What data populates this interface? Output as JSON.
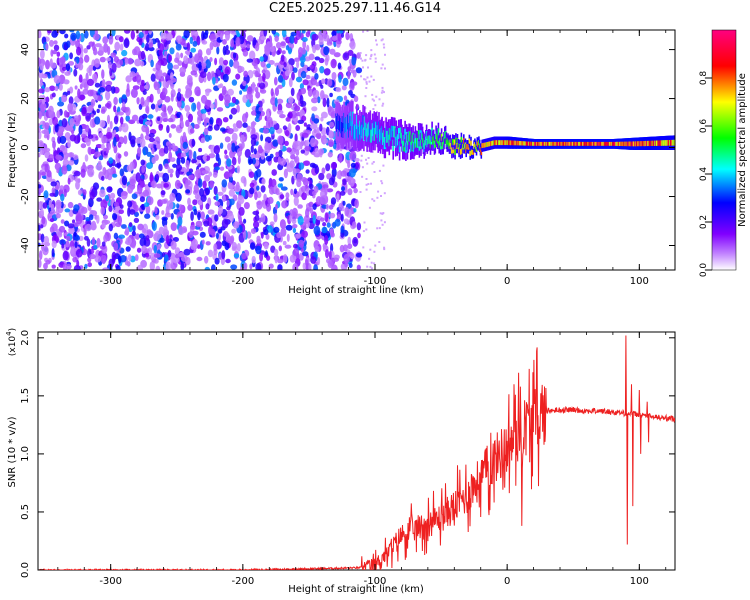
{
  "title": "C2E5.2025.297.11.46.G14",
  "chart_data": [
    {
      "type": "heatmap",
      "title": "C2E5.2025.297.11.46.G14",
      "xlabel": "Height of straight line (km)",
      "ylabel": "Frequency (Hz)",
      "xlim": [
        -355,
        127
      ],
      "ylim": [
        -50,
        48
      ],
      "xticks": [
        -300,
        -200,
        -100,
        0,
        100
      ],
      "yticks": [
        -40,
        -20,
        0,
        20,
        40
      ],
      "colorbar": {
        "label": "Normalized spectral amplitude",
        "range": [
          0.0,
          1.0
        ],
        "ticks": [
          0.0,
          0.2,
          0.4,
          0.6,
          0.8
        ],
        "colors": [
          "#ffffff",
          "#a000ff",
          "#0000ff",
          "#00ffff",
          "#00ff00",
          "#ffff00",
          "#ff0000",
          "#ff0080"
        ]
      },
      "noise_region": {
        "x": [
          -355,
          -112
        ],
        "y": [
          -50,
          48
        ],
        "amplitude": 0.25
      },
      "signal_track": [
        {
          "x": -130,
          "f": 10,
          "amp": 0.35,
          "width": 8
        },
        {
          "x": -110,
          "f": 8,
          "amp": 0.45,
          "width": 7
        },
        {
          "x": -90,
          "f": 4,
          "amp": 0.5,
          "width": 6
        },
        {
          "x": -70,
          "f": 2,
          "amp": 0.55,
          "width": 5
        },
        {
          "x": -55,
          "f": 4,
          "amp": 0.6,
          "width": 4
        },
        {
          "x": -40,
          "f": 1,
          "amp": 0.75,
          "width": 3
        },
        {
          "x": -25,
          "f": 0,
          "amp": 0.85,
          "width": 2.5
        },
        {
          "x": -10,
          "f": 2,
          "amp": 0.85,
          "width": 2.5
        },
        {
          "x": 0,
          "f": 2,
          "amp": 0.9,
          "width": 2.5
        },
        {
          "x": 20,
          "f": 1.5,
          "amp": 0.95,
          "width": 2
        },
        {
          "x": 50,
          "f": 1.5,
          "amp": 0.95,
          "width": 2
        },
        {
          "x": 80,
          "f": 1.5,
          "amp": 0.95,
          "width": 2
        },
        {
          "x": 95,
          "f": 1.5,
          "amp": 0.95,
          "width": 2.5
        },
        {
          "x": 127,
          "f": 2,
          "amp": 0.9,
          "width": 3
        }
      ]
    },
    {
      "type": "line",
      "xlabel": "Height of straight line (km)",
      "ylabel": "SNR (10 * v/v)",
      "yscale_label": "(x10",
      "yscale_exp": "4",
      "xlim": [
        -355,
        127
      ],
      "ylim": [
        0,
        2.05
      ],
      "xticks": [
        -300,
        -200,
        -100,
        0,
        100
      ],
      "yticks": [
        0.0,
        0.5,
        1.0,
        1.5,
        2.0
      ],
      "ytick_labels": [
        "0.0",
        "0.5",
        "1.0",
        "1.5",
        "2.0"
      ],
      "color": "#ee2020",
      "series": [
        {
          "name": "SNR",
          "x": [
            -355,
            -300,
            -250,
            -200,
            -150,
            -110,
            -100,
            -90,
            -80,
            -70,
            -60,
            -50,
            -40,
            -30,
            -20,
            -10,
            0,
            10,
            20,
            30,
            40,
            50,
            60,
            70,
            80,
            90,
            100,
            110,
            127
          ],
          "y": [
            0.0,
            0.0,
            0.0,
            0.0,
            0.01,
            0.02,
            0.05,
            0.15,
            0.3,
            0.35,
            0.4,
            0.45,
            0.55,
            0.65,
            0.8,
            0.95,
            1.05,
            1.2,
            1.3,
            1.37,
            1.38,
            1.38,
            1.37,
            1.37,
            1.36,
            1.35,
            1.34,
            1.32,
            1.3
          ]
        }
      ],
      "spikes": [
        {
          "x": 10,
          "y": 1.58
        },
        {
          "x": 11,
          "y": 0.38
        },
        {
          "x": 90,
          "y": 2.02
        },
        {
          "x": 91,
          "y": 0.22
        },
        {
          "x": 94,
          "y": 1.6
        },
        {
          "x": 95,
          "y": 0.55
        },
        {
          "x": 100,
          "y": 1.55
        },
        {
          "x": 101,
          "y": 1.0
        },
        {
          "x": 106,
          "y": 1.45
        },
        {
          "x": 107,
          "y": 1.1
        }
      ]
    }
  ]
}
